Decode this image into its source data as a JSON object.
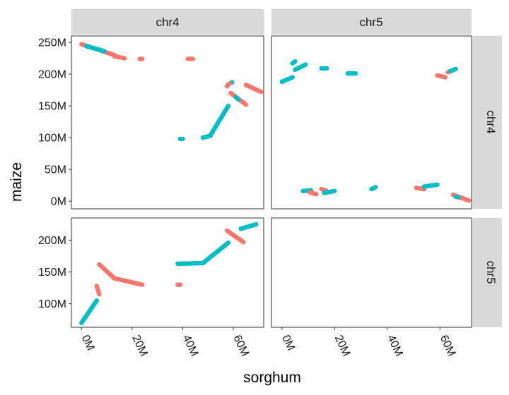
{
  "chart_data": {
    "type": "scatter",
    "xlabel": "sorghum",
    "ylabel": "maize",
    "facet_cols": [
      "chr4",
      "chr5"
    ],
    "facet_rows": [
      "chr4",
      "chr5"
    ],
    "x_ticks": [
      0,
      20000000,
      40000000,
      60000000
    ],
    "x_tick_labels": [
      "0M",
      "20M",
      "40M",
      "60M"
    ],
    "y_ticks_row_chr4": [
      0,
      50000000,
      100000000,
      150000000,
      200000000,
      250000000
    ],
    "y_tick_labels_row_chr4": [
      "0M",
      "50M",
      "100M",
      "150M",
      "200M",
      "250M"
    ],
    "y_ticks_row_chr5": [
      100000000,
      150000000,
      200000000
    ],
    "y_tick_labels_row_chr5": [
      "100M",
      "150M",
      "200M"
    ],
    "xlim": [
      -4000000,
      72000000
    ],
    "ylim_row_chr4": [
      -12000000,
      260000000
    ],
    "ylim_row_chr5": [
      63000000,
      235000000
    ],
    "colors": {
      "red": "#F8766D",
      "teal": "#00BFC4"
    },
    "panels": [
      {
        "row": "chr4",
        "col": "chr4",
        "segments": [
          {
            "color": "red",
            "x": [
              0,
              13000000
            ],
            "y": [
              247000000,
              230000000
            ]
          },
          {
            "color": "teal",
            "x": [
              2000000,
              9000000
            ],
            "y": [
              244000000,
              236000000
            ]
          },
          {
            "color": "red",
            "x": [
              13000000,
              17000000
            ],
            "y": [
              228000000,
              225000000
            ]
          },
          {
            "color": "red",
            "x": [
              23000000,
              24000000
            ],
            "y": [
              224000000,
              224000000
            ]
          },
          {
            "color": "red",
            "x": [
              42000000,
              44000000
            ],
            "y": [
              224000000,
              224000000
            ]
          },
          {
            "color": "teal",
            "x": [
              39000000,
              40000000
            ],
            "y": [
              98000000,
              98000000
            ]
          },
          {
            "color": "teal",
            "x": [
              48000000,
              51000000
            ],
            "y": [
              100000000,
              103000000
            ]
          },
          {
            "color": "teal",
            "x": [
              51000000,
              58000000
            ],
            "y": [
              104000000,
              150000000
            ]
          },
          {
            "color": "teal",
            "x": [
              58000000,
              59500000
            ],
            "y": [
              184000000,
              187000000
            ]
          },
          {
            "color": "red",
            "x": [
              57500000,
              58500000
            ],
            "y": [
              181000000,
              185000000
            ]
          },
          {
            "color": "red",
            "x": [
              59000000,
              65000000
            ],
            "y": [
              170000000,
              152000000
            ]
          },
          {
            "color": "teal",
            "x": [
              61000000,
              62000000
            ],
            "y": [
              164000000,
              160000000
            ]
          },
          {
            "color": "red",
            "x": [
              65000000,
              71000000
            ],
            "y": [
              183000000,
              172000000
            ]
          }
        ]
      },
      {
        "row": "chr4",
        "col": "chr5",
        "segments": [
          {
            "color": "teal",
            "x": [
              0,
              4000000
            ],
            "y": [
              188000000,
              195000000
            ]
          },
          {
            "color": "teal",
            "x": [
              4000000,
              5000000
            ],
            "y": [
              217000000,
              220000000
            ]
          },
          {
            "color": "teal",
            "x": [
              5000000,
              9000000
            ],
            "y": [
              207000000,
              215000000
            ]
          },
          {
            "color": "teal",
            "x": [
              15000000,
              17000000
            ],
            "y": [
              209000000,
              209000000
            ]
          },
          {
            "color": "teal",
            "x": [
              25000000,
              28000000
            ],
            "y": [
              201000000,
              201000000
            ]
          },
          {
            "color": "red",
            "x": [
              59000000,
              62000000
            ],
            "y": [
              198000000,
              195000000
            ]
          },
          {
            "color": "red",
            "x": [
              63000000,
              65000000
            ],
            "y": [
              203000000,
              206000000
            ]
          },
          {
            "color": "teal",
            "x": [
              64000000,
              66000000
            ],
            "y": [
              205000000,
              208000000
            ]
          },
          {
            "color": "teal",
            "x": [
              8000000,
              11000000
            ],
            "y": [
              16000000,
              17000000
            ]
          },
          {
            "color": "red",
            "x": [
              10500000,
              13000000
            ],
            "y": [
              14000000,
              11000000
            ]
          },
          {
            "color": "red",
            "x": [
              15000000,
              17000000
            ],
            "y": [
              19000000,
              16000000
            ]
          },
          {
            "color": "teal",
            "x": [
              16000000,
              20000000
            ],
            "y": [
              13000000,
              16000000
            ]
          },
          {
            "color": "teal",
            "x": [
              34000000,
              35500000
            ],
            "y": [
              19000000,
              22000000
            ]
          },
          {
            "color": "red",
            "x": [
              51000000,
              54000000
            ],
            "y": [
              21000000,
              19000000
            ]
          },
          {
            "color": "teal",
            "x": [
              54000000,
              59000000
            ],
            "y": [
              23000000,
              26000000
            ]
          },
          {
            "color": "red",
            "x": [
              65000000,
              71000000
            ],
            "y": [
              10000000,
              1000000
            ]
          },
          {
            "color": "teal",
            "x": [
              66000000,
              67000000
            ],
            "y": [
              7000000,
              6000000
            ]
          }
        ]
      },
      {
        "row": "chr5",
        "col": "chr4",
        "segments": [
          {
            "color": "teal",
            "x": [
              0,
              6000000
            ],
            "y": [
              70000000,
              105000000
            ]
          },
          {
            "color": "red",
            "x": [
              6000000,
              7000000
            ],
            "y": [
              128000000,
              115000000
            ]
          },
          {
            "color": "red",
            "x": [
              7000000,
              13000000
            ],
            "y": [
              162000000,
              140000000
            ]
          },
          {
            "color": "red",
            "x": [
              13000000,
              24000000
            ],
            "y": [
              140000000,
              130000000
            ]
          },
          {
            "color": "red",
            "x": [
              38000000,
              39000000
            ],
            "y": [
              130000000,
              130000000
            ]
          },
          {
            "color": "teal",
            "x": [
              38000000,
              48000000
            ],
            "y": [
              163000000,
              164000000
            ]
          },
          {
            "color": "teal",
            "x": [
              48000000,
              58000000
            ],
            "y": [
              164000000,
              196000000
            ]
          },
          {
            "color": "red",
            "x": [
              57500000,
              64000000
            ],
            "y": [
              215000000,
              197000000
            ]
          },
          {
            "color": "teal",
            "x": [
              63000000,
              69000000
            ],
            "y": [
              218000000,
              225000000
            ]
          }
        ]
      },
      {
        "row": "chr5",
        "col": "chr5",
        "segments": []
      }
    ]
  }
}
